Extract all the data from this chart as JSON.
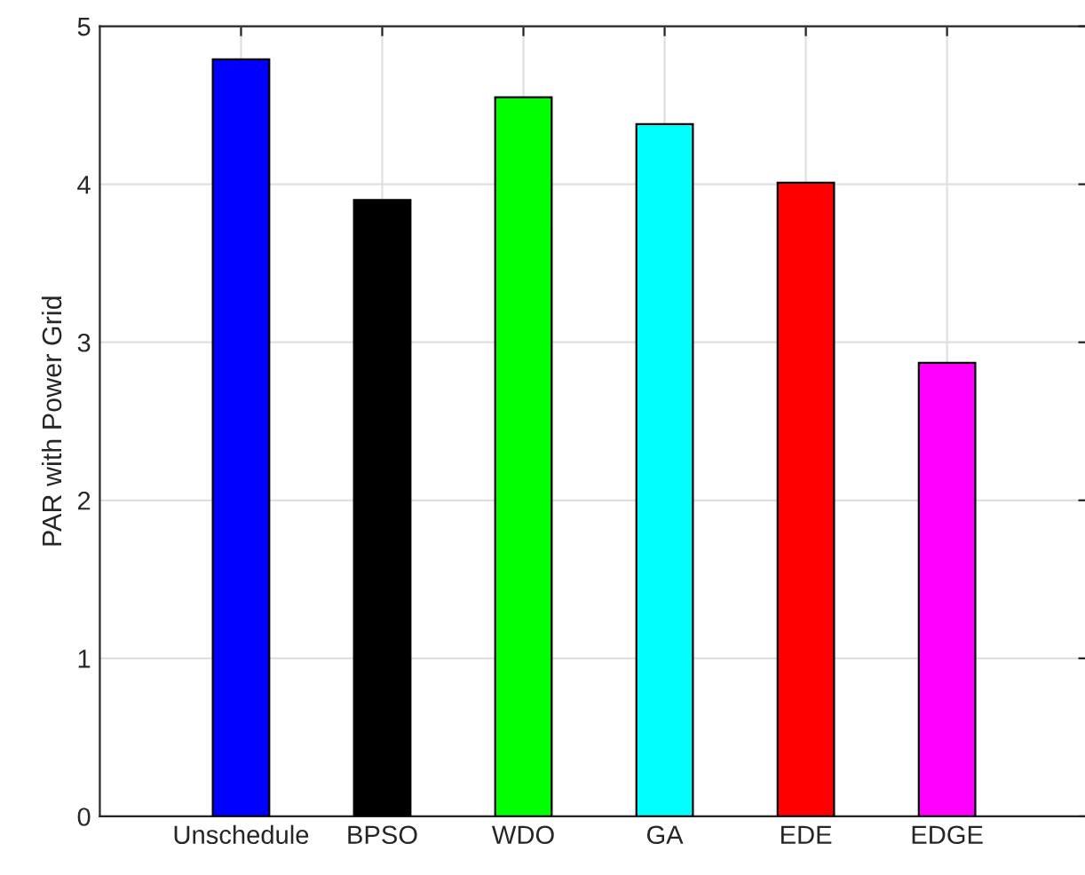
{
  "chart_data": {
    "type": "bar",
    "ylabel": "PAR with Power Grid",
    "categories": [
      "Unschedule",
      "BPSO",
      "WDO",
      "GA",
      "EDE",
      "EDGE"
    ],
    "values": [
      4.79,
      3.9,
      4.55,
      4.38,
      4.01,
      2.87
    ],
    "colors": [
      "#0000ff",
      "#000000",
      "#00ff00",
      "#00ffff",
      "#ff0000",
      "#ff00ff"
    ],
    "ylim": [
      0,
      5
    ],
    "yticks": [
      0,
      1,
      2,
      3,
      4,
      5
    ],
    "grid": true
  }
}
